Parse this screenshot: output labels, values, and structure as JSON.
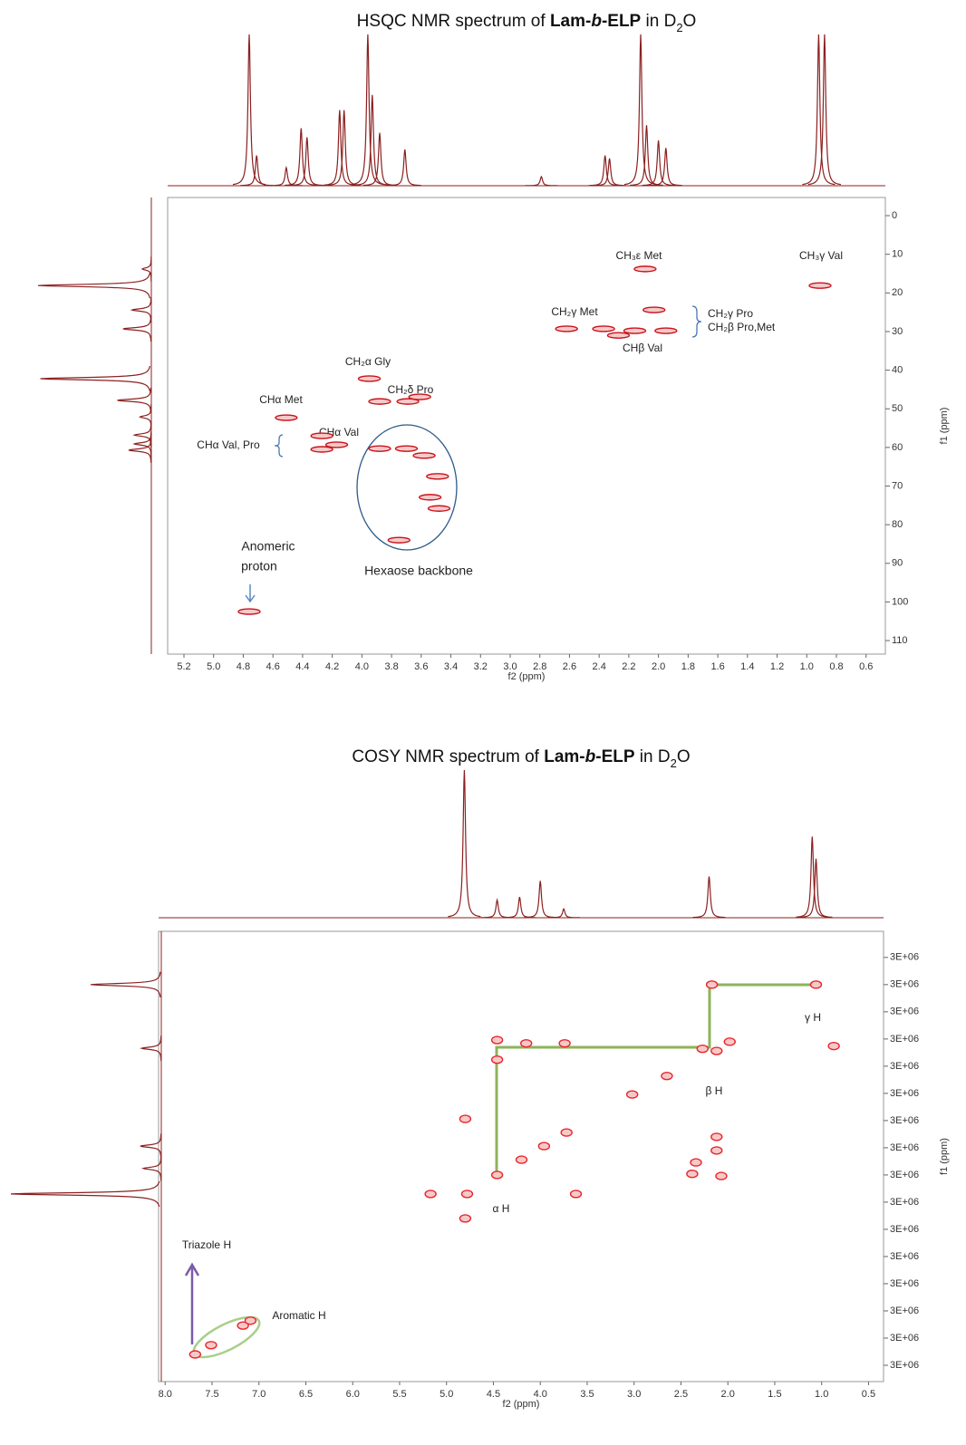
{
  "chart_data": [
    {
      "type": "scatter",
      "title": [
        "HSQC NMR spectrum of ",
        "Lam-",
        "b",
        "-ELP",
        " in D",
        "2",
        "O"
      ],
      "x_label": "f2 (ppm)",
      "y_label": "f1 (ppm)",
      "xlim": [
        5.31,
        0.47
      ],
      "ylim": [
        -4.7,
        113.5
      ],
      "y_reversed": true,
      "xticks": [
        5.2,
        {
          "value": 5,
          "label": "5.0"
        },
        4.8,
        4.6,
        4.4,
        4.2,
        {
          "value": 4,
          "label": "4.0"
        },
        3.8,
        3.6,
        3.4,
        3.2,
        {
          "value": 3,
          "label": "3.0"
        },
        2.8,
        2.6,
        2.4,
        2.2,
        {
          "value": 2,
          "label": "2.0"
        },
        1.8,
        1.6,
        1.4,
        1.2,
        {
          "value": 1,
          "label": "1.0"
        },
        0.8,
        0.6
      ],
      "yticks": [
        0,
        10,
        20,
        30,
        40,
        50,
        60,
        70,
        80,
        90,
        100,
        110
      ],
      "color": "#c8141c",
      "x": [
        2.09,
        0.91,
        2.03,
        2.62,
        2.37,
        2.16,
        1.95,
        3.95,
        3.88,
        3.69,
        4.51,
        4.27,
        4.27,
        4.17,
        3.88,
        3.7,
        3.58,
        3.49,
        3.54,
        3.48,
        3.75,
        3.61,
        4.76,
        2.27
      ],
      "values": [
        13.8,
        18.1,
        24.4,
        29.3,
        29.3,
        29.8,
        29.8,
        42.2,
        48.1,
        48.1,
        52.3,
        57.0,
        60.5,
        59.3,
        60.3,
        60.3,
        62.1,
        67.5,
        72.9,
        75.8,
        84.0,
        46.9,
        102.5,
        31.0
      ],
      "f2_projection": {
        "x": [
          4.76,
          4.71,
          4.51,
          4.41,
          4.37,
          4.15,
          4.12,
          3.96,
          3.93,
          3.88,
          3.71,
          2.79,
          2.36,
          2.33,
          2.12,
          2.08,
          2.0,
          1.95,
          0.92,
          0.88
        ],
        "values": [
          100,
          20,
          12,
          38,
          32,
          50,
          50,
          100,
          60,
          35,
          24,
          6,
          20,
          18,
          100,
          40,
          30,
          25,
          100,
          100
        ],
        "ylim": [
          0,
          100
        ]
      },
      "f1_projection": {
        "x": [
          13.8,
          18.1,
          24.4,
          29.3,
          42.2,
          47.8,
          52.1,
          56.8,
          59.1,
          60.7
        ],
        "values": [
          8,
          100,
          17,
          25,
          98,
          30,
          10,
          15,
          15,
          20
        ],
        "ylim": [
          0,
          100
        ]
      },
      "annotations": [
        "CH₃ε Met",
        "CH₃γ Val",
        "CH₂γ Pro",
        "CH₂β Pro,Met",
        "CH₂γ Met",
        "CHβ Val",
        "CH₂α Gly",
        "CH₂δ Pro",
        "CHα Met",
        "CHα Val",
        "CHα Val, Pro",
        "Anomeric",
        "proton",
        "Hexaose backbone"
      ]
    },
    {
      "type": "scatter",
      "title": [
        "COSY NMR spectrum of ",
        "Lam-",
        "b",
        "-ELP",
        " in D",
        "2",
        "O"
      ],
      "x_label": "f2 (ppm)",
      "y_label": "f1 (ppm)",
      "xlim": [
        8.07,
        0.34
      ],
      "ylim": [
        0.02,
        8.3
      ],
      "y_reversed": true,
      "xticks": [
        {
          "value": 8,
          "label": "8.0"
        },
        7.5,
        {
          "value": 7,
          "label": "7.0"
        },
        6.5,
        {
          "value": 6,
          "label": "6.0"
        },
        5.5,
        {
          "value": 5,
          "label": "5.0"
        },
        4.5,
        {
          "value": 4,
          "label": "4.0"
        },
        3.5,
        {
          "value": 3,
          "label": "3.0"
        },
        2.5,
        {
          "value": 2,
          "label": "2.0"
        },
        1.5,
        {
          "value": 1,
          "label": "1.0"
        },
        0.5
      ],
      "yticks": [
        {
          "value": 0.5,
          "label": "3E+06"
        },
        {
          "value": 1,
          "label": "3E+06"
        },
        {
          "value": 1.5,
          "label": "3E+06"
        },
        {
          "value": 2,
          "label": "3E+06"
        },
        {
          "value": 2.5,
          "label": "3E+06"
        },
        {
          "value": 3,
          "label": "3E+06"
        },
        {
          "value": 3.5,
          "label": "3E+06"
        },
        {
          "value": 4,
          "label": "3E+06"
        },
        {
          "value": 4.5,
          "label": "3E+06"
        },
        {
          "value": 5,
          "label": "3E+06"
        },
        {
          "value": 5.5,
          "label": "3E+06"
        },
        {
          "value": 6,
          "label": "3E+06"
        },
        {
          "value": 6.5,
          "label": "3E+06"
        },
        {
          "value": 7,
          "label": "3E+06"
        },
        {
          "value": 7.5,
          "label": "3E+06"
        },
        {
          "value": 8,
          "label": "3E+06"
        }
      ],
      "color": "#e8262c",
      "x": [
        1.06,
        2.17,
        0.87,
        2.12,
        2.27,
        1.98,
        2.65,
        3.02,
        4.46,
        4.15,
        3.74,
        4.46,
        2.12,
        2.12,
        2.34,
        2.38,
        2.07,
        3.72,
        3.96,
        4.2,
        4.46,
        4.78,
        5.17,
        3.62,
        4.8,
        4.8,
        7.68,
        7.51,
        7.17,
        7.09
      ],
      "values": [
        1.0,
        1.0,
        2.13,
        2.22,
        2.18,
        2.05,
        2.68,
        3.02,
        2.02,
        2.08,
        2.08,
        2.38,
        3.8,
        4.05,
        4.27,
        4.48,
        4.52,
        3.72,
        3.97,
        4.22,
        4.5,
        4.85,
        4.85,
        4.85,
        3.47,
        5.3,
        7.8,
        7.63,
        7.27,
        7.18
      ],
      "f2_projection": {
        "x": [
          4.81,
          4.46,
          4.22,
          4.0,
          3.75,
          2.2,
          1.1,
          1.06
        ],
        "values": [
          100,
          12,
          14,
          25,
          6,
          28,
          55,
          40
        ],
        "ylim": [
          0,
          100
        ]
      },
      "f1_projection": {
        "x": [
          1.0,
          2.17,
          3.97,
          4.38,
          4.85
        ],
        "values": [
          47,
          13,
          14,
          12,
          100
        ],
        "ylim": [
          0,
          100
        ]
      },
      "annotations": [
        "γ H",
        "β H",
        "α H",
        "Triazole H",
        "Aromatic H"
      ]
    }
  ]
}
